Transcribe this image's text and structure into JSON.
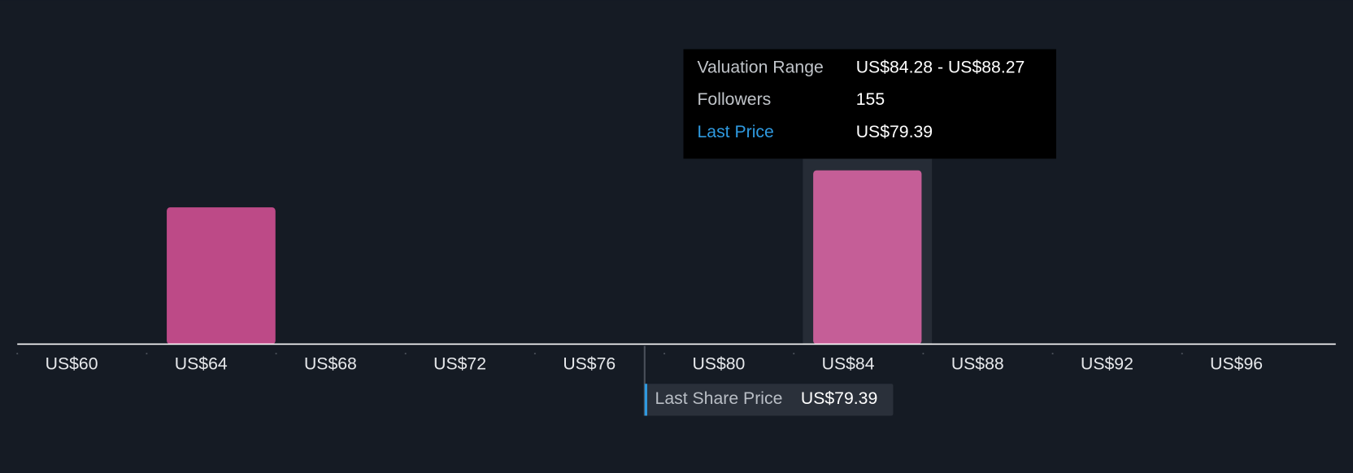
{
  "chart_data": {
    "type": "histogram",
    "ranges": [
      [
        64.3,
        68.3
      ],
      [
        84.28,
        88.27
      ]
    ],
    "values": [
      122,
      155
    ],
    "colors": [
      "#bd4a87",
      "#c55e97"
    ],
    "xlim": [
      60,
      100.75
    ],
    "xticks": [
      {
        "value": 60,
        "label": "US$60"
      },
      {
        "value": 64,
        "label": "US$64"
      },
      {
        "value": 68,
        "label": "US$68"
      },
      {
        "value": 72,
        "label": "US$72"
      },
      {
        "value": 76,
        "label": "US$76"
      },
      {
        "value": 80,
        "label": "US$80"
      },
      {
        "value": 84,
        "label": "US$84"
      },
      {
        "value": 88,
        "label": "US$88"
      },
      {
        "value": 92,
        "label": "US$92"
      },
      {
        "value": 96,
        "label": "US$96"
      }
    ],
    "ylim": [
      0,
      200
    ],
    "last_price": {
      "value": 79.39,
      "label": "US$79.39",
      "title": "Last Share Price"
    },
    "tooltip": {
      "range_label": "Valuation Range",
      "range": "US$84.28 - US$88.27",
      "followers_label": "Followers",
      "price_label": "Last Price"
    }
  }
}
